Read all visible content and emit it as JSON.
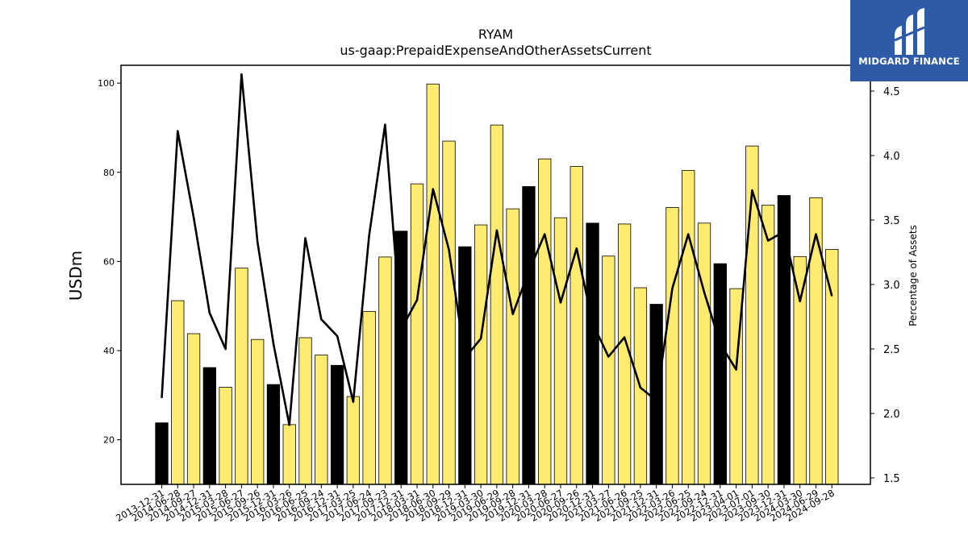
{
  "logo": {
    "text": "MIDGARD FINANCE"
  },
  "colors": {
    "bar_fill": "#ffeb70",
    "bar_highlight": "#000000",
    "line": "#000000",
    "logo_bg": "#2f5aa8"
  },
  "chart_data": {
    "type": "bar",
    "title": "RYAM",
    "subtitle": "us-gaap:PrepaidExpenseAndOtherAssetsCurrent",
    "ylabel": "USDm",
    "y2label": "Percentage of Assets",
    "ylim": [
      10,
      104
    ],
    "y2lim": [
      1.45,
      4.7
    ],
    "yticks": [
      "20",
      "40",
      "60",
      "80",
      "100"
    ],
    "y2ticks": [
      "1.5",
      "2.0",
      "2.5",
      "3.0",
      "3.5",
      "4.0",
      "4.5"
    ],
    "categories": [
      "2013-12-31",
      "2014-06-28",
      "2014-09-27",
      "2014-12-31",
      "2015-03-28",
      "2015-06-27",
      "2015-09-26",
      "2015-12-31",
      "2016-03-26",
      "2016-06-25",
      "2016-09-24",
      "2016-12-31",
      "2017-03-25",
      "2017-06-24",
      "2017-09-23",
      "2017-12-31",
      "2018-03-31",
      "2018-06-30",
      "2018-09-29",
      "2018-12-31",
      "2019-03-30",
      "2019-06-29",
      "2019-09-28",
      "2019-12-31",
      "2020-03-28",
      "2020-06-27",
      "2020-09-26",
      "2020-12-31",
      "2021-03-27",
      "2021-06-26",
      "2021-09-25",
      "2021-12-31",
      "2022-03-26",
      "2022-06-25",
      "2022-09-24",
      "2022-12-31",
      "2023-04-01",
      "2023-07-01",
      "2023-09-30",
      "2023-12-31",
      "2024-03-30",
      "2024-06-29",
      "2024-09-28"
    ],
    "series": [
      {
        "kind": "bar",
        "values": [
          23.8,
          51.2,
          43.8,
          36.2,
          31.8,
          58.5,
          42.5,
          32.4,
          23.4,
          42.9,
          39.0,
          36.7,
          29.7,
          48.8,
          61.0,
          66.8,
          77.4,
          99.8,
          87.0,
          63.3,
          68.2,
          90.6,
          71.8,
          76.8,
          83.0,
          69.8,
          81.3,
          68.6,
          61.2,
          68.4,
          54.1,
          50.4,
          72.1,
          80.4,
          68.6,
          59.5,
          53.9,
          85.9,
          72.6,
          74.8,
          61.1,
          74.3,
          62.7
        ],
        "highlight": [
          true,
          false,
          false,
          true,
          false,
          false,
          false,
          true,
          false,
          false,
          false,
          true,
          false,
          false,
          false,
          true,
          false,
          false,
          false,
          true,
          false,
          false,
          false,
          true,
          false,
          false,
          false,
          true,
          false,
          false,
          false,
          true,
          false,
          false,
          false,
          true,
          false,
          false,
          false,
          true,
          false,
          false,
          false
        ]
      },
      {
        "kind": "line",
        "axis": "right",
        "values": [
          2.12,
          4.19,
          3.52,
          2.78,
          2.5,
          4.63,
          3.33,
          2.54,
          1.91,
          3.36,
          2.73,
          2.6,
          2.09,
          3.38,
          4.24,
          2.65,
          2.88,
          3.74,
          3.27,
          2.43,
          2.58,
          3.42,
          2.77,
          3.1,
          3.39,
          2.86,
          3.28,
          2.7,
          2.44,
          2.59,
          2.2,
          2.1,
          2.97,
          3.39,
          2.94,
          2.54,
          2.34,
          3.73,
          3.34,
          3.41,
          2.87,
          3.39,
          2.91
        ]
      }
    ]
  }
}
